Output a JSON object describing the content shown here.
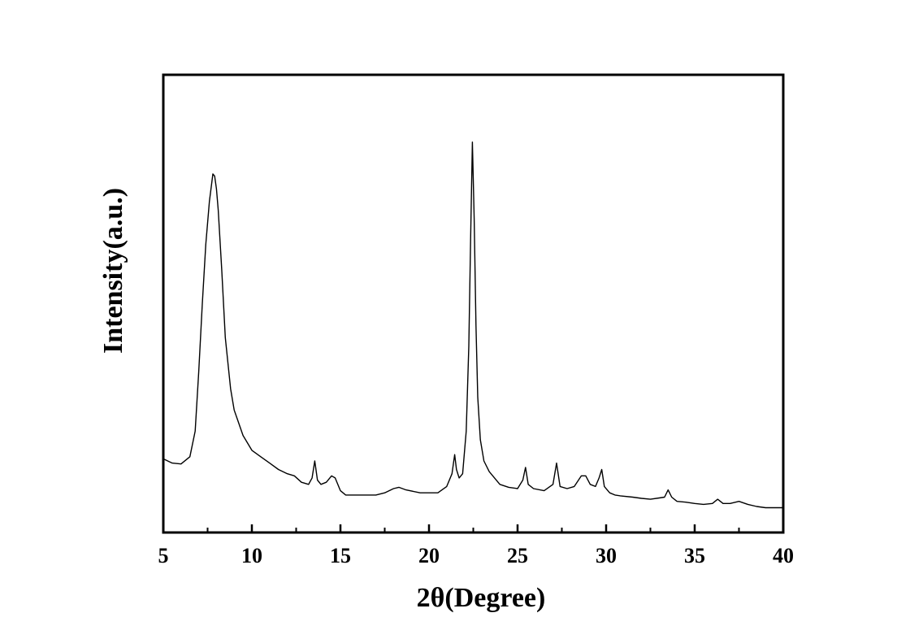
{
  "chart_data": {
    "type": "line",
    "title": "",
    "xlabel": "2θ(Degree)",
    "ylabel": "Intensity(a.u.)",
    "xlim": [
      5,
      40
    ],
    "ylim": [
      0,
      100
    ],
    "xticks": [
      5,
      10,
      15,
      20,
      25,
      30,
      35,
      40
    ],
    "yticks_shown": false,
    "grid": false,
    "legend": "none",
    "line_color": "#000000",
    "series": [
      {
        "x": [
          5.0,
          5.5,
          6.0,
          6.5,
          6.8,
          7.0,
          7.2,
          7.4,
          7.6,
          7.8,
          7.9,
          8.0,
          8.1,
          8.3,
          8.5,
          8.8,
          9.0,
          9.5,
          10.0,
          10.5,
          11.0,
          11.5,
          12.0,
          12.4,
          12.8,
          13.2,
          13.4,
          13.55,
          13.7,
          13.9,
          14.2,
          14.5,
          14.7,
          15.0,
          15.3,
          15.7,
          16.5,
          17.0,
          17.5,
          18.0,
          18.3,
          18.7,
          19.5,
          20.0,
          20.5,
          21.0,
          21.3,
          21.45,
          21.55,
          21.7,
          21.9,
          22.1,
          22.25,
          22.35,
          22.45,
          22.55,
          22.65,
          22.75,
          22.9,
          23.1,
          23.4,
          24.0,
          24.5,
          25.0,
          25.3,
          25.45,
          25.6,
          25.9,
          26.5,
          27.0,
          27.2,
          27.4,
          27.8,
          28.2,
          28.6,
          28.85,
          29.1,
          29.4,
          29.6,
          29.75,
          29.9,
          30.2,
          30.5,
          30.8,
          31.5,
          32.0,
          32.5,
          33.0,
          33.3,
          33.5,
          33.7,
          34.0,
          34.5,
          35.0,
          35.5,
          36.0,
          36.3,
          36.6,
          37.0,
          37.5,
          38.0,
          38.5,
          39.0,
          39.5,
          40.0
        ],
        "y": [
          13.5,
          12.5,
          12.3,
          14.0,
          20.0,
          34.0,
          50.0,
          64.0,
          74.0,
          80.5,
          80.0,
          77.0,
          72.0,
          58.0,
          42.0,
          30.0,
          25.0,
          19.0,
          15.5,
          14.0,
          12.5,
          11.0,
          10.0,
          9.5,
          8.0,
          7.5,
          9.0,
          13.0,
          8.5,
          7.5,
          8.0,
          9.5,
          9.0,
          6.0,
          5.0,
          5.0,
          5.0,
          5.0,
          5.5,
          6.5,
          6.8,
          6.2,
          5.5,
          5.5,
          5.5,
          7.0,
          10.0,
          14.5,
          11.0,
          9.0,
          10.0,
          20.0,
          40.0,
          65.0,
          88.0,
          70.0,
          45.0,
          28.0,
          18.0,
          13.0,
          10.5,
          7.5,
          6.8,
          6.5,
          8.5,
          11.5,
          7.5,
          6.5,
          6.0,
          7.5,
          12.5,
          7.0,
          6.5,
          7.0,
          9.5,
          9.5,
          7.5,
          7.0,
          9.0,
          11.0,
          7.0,
          5.5,
          5.0,
          4.8,
          4.5,
          4.2,
          4.0,
          4.3,
          4.5,
          6.2,
          4.5,
          3.5,
          3.3,
          3.0,
          2.8,
          3.0,
          4.0,
          3.0,
          3.0,
          3.5,
          2.8,
          2.3,
          2.0,
          2.0,
          2.0
        ]
      }
    ]
  }
}
